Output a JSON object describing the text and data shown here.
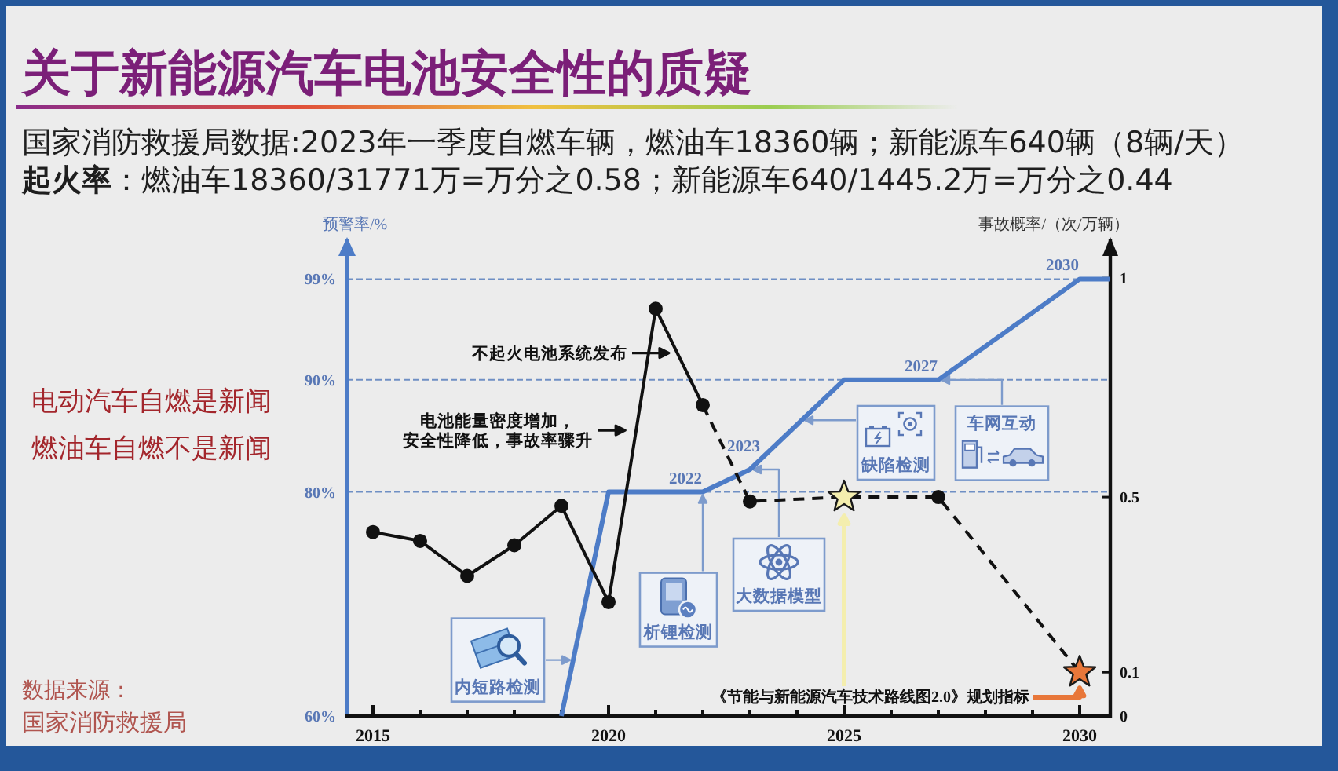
{
  "chart_data": {
    "type": "line",
    "title": "关于新能源汽车电池安全性的质疑",
    "subtitle": "国家消防救援局数据:2023年一季度自燃车辆，燃油车18360辆；新能源车640辆（8辆/天）",
    "ylabel": "预警率/%",
    "y2label": "事故概率/（次/万辆）",
    "xlim": [
      2014.45,
      2030.65
    ],
    "xticks": [
      2015,
      {
        "value": 2016,
        "label": null
      },
      {
        "value": 2017,
        "label": null
      },
      {
        "value": 2018,
        "label": null
      },
      {
        "value": 2019,
        "label": null
      },
      2020,
      {
        "value": 2021,
        "label": null
      },
      {
        "value": 2022,
        "label": null
      },
      {
        "value": 2023,
        "label": null
      },
      {
        "value": 2024,
        "label": null
      },
      2025,
      {
        "value": 2026,
        "label": null
      },
      {
        "value": 2027,
        "label": null
      },
      {
        "value": 2028,
        "label": null
      },
      {
        "value": 2029,
        "label": null
      },
      2030
    ],
    "ylim": [
      60,
      102.6
    ],
    "yticks": [
      {
        "value": 60,
        "label": "60%"
      },
      {
        "value": 80,
        "label": "80%"
      },
      {
        "value": 90,
        "label": "90%"
      },
      {
        "value": 99,
        "label": "99%"
      }
    ],
    "y2lim": [
      0,
      1.09
    ],
    "y2ticks": [
      0,
      0.1,
      0.5,
      1
    ],
    "grid": "y",
    "series": [
      {
        "color": "#4d7cc7",
        "x": [
          2019,
          2020,
          2022,
          2023,
          2025,
          2027,
          2030,
          2030.65
        ],
        "values": [
          60,
          80,
          80,
          82,
          90,
          90,
          99,
          99
        ]
      },
      {
        "axis": "y2",
        "color": "#111111",
        "marker": "circle",
        "x": [
          2015,
          2016,
          2017,
          2018,
          2019,
          2020,
          2021,
          2022
        ],
        "values": [
          0.42,
          0.4,
          0.32,
          0.39,
          0.48,
          0.26,
          0.93,
          0.71
        ]
      },
      {
        "axis": "y2",
        "color": "#111111",
        "line_style": "dashed",
        "x": [
          2022,
          2023,
          2025,
          2027,
          2030
        ],
        "values": [
          0.71,
          0.49,
          0.5,
          0.5,
          0.1
        ]
      },
      {
        "type": "scatter",
        "axis": "y2",
        "color": "#111111",
        "marker": "circle",
        "x": [
          2023,
          2027
        ],
        "values": [
          0.49,
          0.5
        ]
      },
      {
        "type": "scatter",
        "axis": "y2",
        "marker": "star",
        "colors": [
          "#f4eeae",
          "#e8773a"
        ],
        "x": [
          2025,
          2030
        ],
        "values": [
          0.5,
          0.1
        ]
      }
    ],
    "annotations": [
      "电动汽车自燃是新闻",
      "燃油车自燃不是新闻",
      "数据来源：",
      "国家消防救援局",
      "**起火率**：燃油车18360/31771万=万分之0.58；新能源车640/1445.2万=万分之0.44",
      {
        "text": "不起火电池系统发布",
        "x": 2021.35,
        "y": 92.4
      },
      {
        "text": "电池能量密度增加，安全性降低，事故率骤升",
        "x": 2020.42,
        "y": 85.5
      },
      {
        "text": "2022",
        "x": 2022,
        "y": 80
      },
      {
        "text": "2023",
        "x": 2023,
        "y": 82
      },
      {
        "text": "2027",
        "x": 2027,
        "y": 90
      },
      {
        "text": "2030",
        "x": 2030,
        "y": 99
      },
      {
        "text": "内短路检测",
        "x": 2019.25,
        "y": 65
      },
      "析锂检测",
      "大数据模型",
      "缺陷检测",
      {
        "text": "车网互动",
        "x": 2027,
        "y": 90
      },
      "《节能与新能源汽车技术路线图2.0》规划指标"
    ]
  }
}
